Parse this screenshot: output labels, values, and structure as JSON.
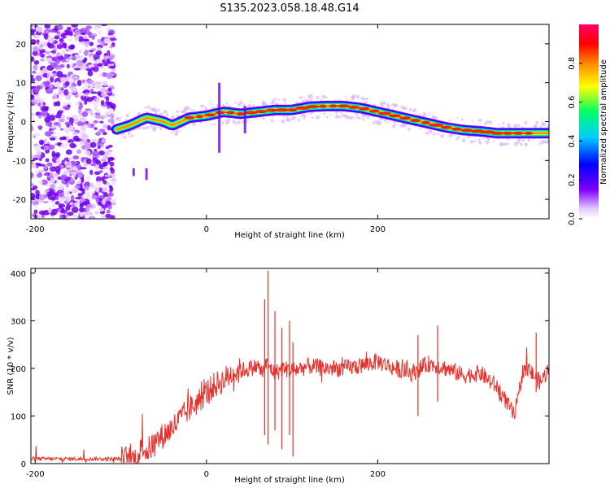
{
  "title": "S135.2023.058.18.48.G14",
  "chart_data": [
    {
      "type": "heatmap",
      "xlabel": "Height of straight line (km)",
      "ylabel": "Frequency (Hz)",
      "xlim": [
        -205,
        400
      ],
      "ylim": [
        -25,
        25
      ],
      "xticks": [
        "-200",
        "0",
        "200"
      ],
      "xtick_values": [
        -200,
        0,
        200
      ],
      "yticks": [
        "-20",
        "-10",
        "0",
        "10",
        "20"
      ],
      "ytick_values": [
        -20,
        -10,
        0,
        10,
        20
      ],
      "colorbar": {
        "label": "Normalized spectral amplitude",
        "range": [
          0,
          1
        ],
        "ticks": [
          "0.0",
          "0.2",
          "0.4",
          "0.6",
          "0.8"
        ],
        "tick_values": [
          0,
          0.2,
          0.4,
          0.6,
          0.8
        ],
        "colors": [
          "#ffffff",
          "#7f00ff",
          "#0000ff",
          "#00ccff",
          "#00ff66",
          "#ffff00",
          "#ff8800",
          "#ff0000",
          "#ff0066"
        ]
      },
      "noise_region": {
        "x": [
          -205,
          -108
        ],
        "y": [
          -25,
          25
        ]
      },
      "ridge": {
        "x": [
          -105,
          -90,
          -80,
          -70,
          -60,
          -50,
          -40,
          -30,
          -20,
          0,
          20,
          40,
          60,
          80,
          100,
          120,
          140,
          160,
          180,
          200,
          220,
          240,
          260,
          280,
          300,
          320,
          340,
          360,
          380,
          400
        ],
        "freq": [
          -2,
          -1,
          0,
          1,
          0.5,
          0,
          -1,
          0,
          1,
          1.5,
          2.5,
          2,
          2.5,
          3,
          3,
          3.8,
          4,
          4,
          3.5,
          2.5,
          1.5,
          0.5,
          -0.5,
          -1.5,
          -2.2,
          -2.5,
          -3,
          -3,
          -3,
          -3
        ]
      },
      "grid": false
    },
    {
      "type": "line",
      "xlabel": "Height of straight line (km)",
      "ylabel": "SNR (10 * v/v)",
      "xlim": [
        -205,
        400
      ],
      "ylim": [
        0,
        410
      ],
      "xticks": [
        "-200",
        "0",
        "200"
      ],
      "xtick_values": [
        -200,
        0,
        200
      ],
      "yticks": [
        "0",
        "100",
        "200",
        "300",
        "400"
      ],
      "ytick_values": [
        0,
        100,
        200,
        300,
        400
      ],
      "color": "#e8312c",
      "series": [
        {
          "x": [
            -205,
            -180,
            -160,
            -140,
            -120,
            -100,
            -80,
            -75,
            -70,
            -60,
            -50,
            -40,
            -30,
            -20,
            -10,
            0,
            10,
            20,
            30,
            40,
            50,
            60,
            65,
            70,
            75,
            80,
            90,
            100,
            110,
            120,
            140,
            160,
            180,
            200,
            220,
            240,
            260,
            280,
            300,
            320,
            340,
            360,
            370,
            380,
            390,
            400
          ],
          "values": [
            10,
            10,
            10,
            10,
            10,
            10,
            10,
            40,
            25,
            45,
            60,
            75,
            95,
            115,
            130,
            150,
            165,
            175,
            190,
            195,
            200,
            205,
            190,
            210,
            200,
            190,
            200,
            195,
            200,
            205,
            200,
            200,
            205,
            215,
            200,
            190,
            210,
            200,
            185,
            190,
            160,
            100,
            200,
            190,
            170,
            200
          ],
          "spikes": [
            {
              "x": 68,
              "min": 60,
              "max": 345
            },
            {
              "x": 72,
              "min": 40,
              "max": 405
            },
            {
              "x": 80,
              "min": 70,
              "max": 320
            },
            {
              "x": 88,
              "min": 30,
              "max": 285
            },
            {
              "x": 97,
              "min": 60,
              "max": 300
            },
            {
              "x": 101,
              "min": 15,
              "max": 255
            },
            {
              "x": 247,
              "min": 100,
              "max": 270
            },
            {
              "x": 270,
              "min": 130,
              "max": 290
            },
            {
              "x": 385,
              "min": 150,
              "max": 275
            }
          ]
        }
      ],
      "grid": false
    }
  ]
}
